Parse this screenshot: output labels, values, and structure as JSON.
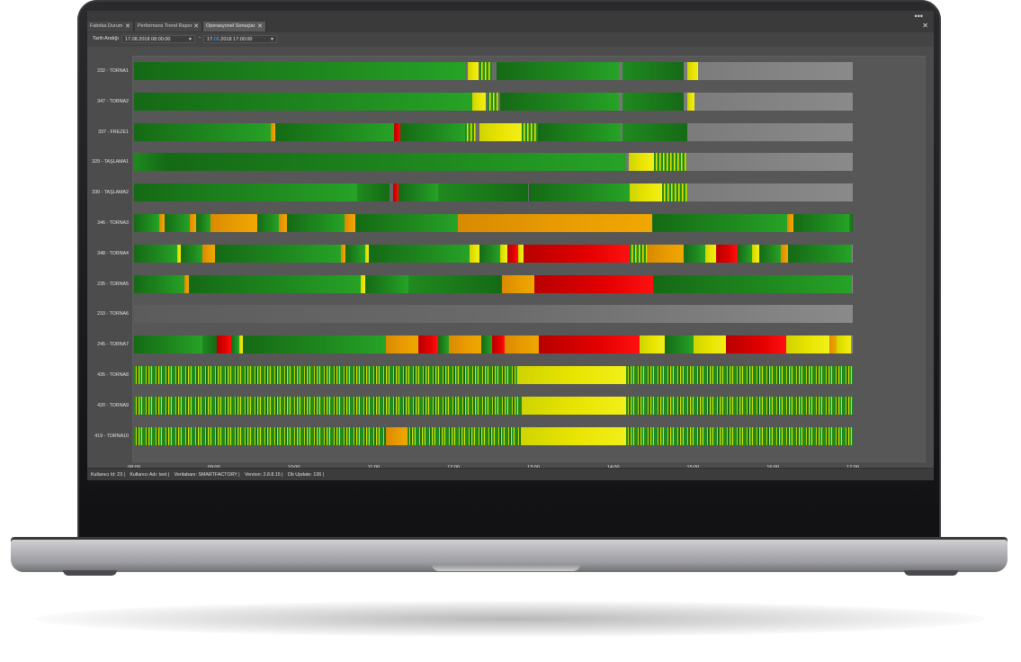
{
  "tabs": [
    {
      "label": "Fabrika Durum",
      "close": "✕"
    },
    {
      "label": "Performans Trend Rapor",
      "close": "✕"
    },
    {
      "label": "Operasyonel Sonuçlar",
      "close": "✕"
    }
  ],
  "window": {
    "menu_dots": "•••",
    "close": "✕"
  },
  "filter": {
    "label": "Tarih Aralığı",
    "start": "17.08.2018 08:00:00",
    "dash": "-",
    "end_prefix": "17.",
    "end_highlight": "08",
    "end_suffix": ".2018 17:00:00"
  },
  "machines": [
    {
      "label": "232 - TORNA1",
      "segments": [
        [
          "g",
          0,
          46
        ],
        [
          "y",
          46.4,
          1.5
        ],
        [
          "gy",
          48,
          1.8
        ],
        [
          "g",
          50.5,
          17
        ],
        [
          "g2",
          68,
          8.5
        ],
        [
          "y",
          77,
          1.5
        ]
      ]
    },
    {
      "label": "347 - TORNA2",
      "segments": [
        [
          "g",
          0,
          47
        ],
        [
          "y",
          47,
          2
        ],
        [
          "gy",
          49.2,
          1.5
        ],
        [
          "g",
          51,
          16.5
        ],
        [
          "g2",
          68,
          8.5
        ],
        [
          "y",
          77,
          1
        ]
      ]
    },
    {
      "label": "337 - FREZE1",
      "segments": [
        [
          "g",
          0,
          19
        ],
        [
          "o",
          19,
          0.7
        ],
        [
          "g",
          19.7,
          16.5
        ],
        [
          "r",
          36.2,
          0.8
        ],
        [
          "g",
          37,
          9
        ],
        [
          "gy",
          46,
          1.5
        ],
        [
          "y",
          48,
          6
        ],
        [
          "gy",
          54,
          2.2
        ],
        [
          "g",
          56.2,
          11.5
        ],
        [
          "g2",
          68,
          9
        ]
      ]
    },
    {
      "label": "329 - TAŞLAMA1",
      "segments": [
        [
          "g2",
          0,
          4.5
        ],
        [
          "g",
          4.5,
          64
        ],
        [
          "y",
          68.8,
          3.5
        ],
        [
          "gy",
          72.3,
          4.5
        ]
      ]
    },
    {
      "label": "330 - TAŞLAMA2",
      "segments": [
        [
          "g",
          0,
          31
        ],
        [
          "g2",
          31,
          4.5
        ],
        [
          "r",
          36,
          0.8
        ],
        [
          "g",
          36.8,
          5.5
        ],
        [
          "g2",
          42.3,
          12.5
        ],
        [
          "g",
          55,
          14
        ],
        [
          "y",
          69,
          4.5
        ],
        [
          "gy",
          73.5,
          3.5
        ]
      ]
    },
    {
      "label": "346 - TORNA3",
      "segments": [
        [
          "g",
          0,
          3.5
        ],
        [
          "o",
          3.5,
          0.8
        ],
        [
          "g",
          4.3,
          3.5
        ],
        [
          "o",
          7.8,
          0.8
        ],
        [
          "g",
          8.6,
          2
        ],
        [
          "o",
          10.6,
          6.5
        ],
        [
          "g",
          17.1,
          3
        ],
        [
          "o",
          20.1,
          1.2
        ],
        [
          "g",
          21.3,
          8
        ],
        [
          "o",
          29.3,
          1.5
        ],
        [
          "g",
          30.8,
          14.3
        ],
        [
          "o",
          45.1,
          27
        ],
        [
          "g",
          72.1,
          18.8
        ],
        [
          "o",
          90.9,
          0.8
        ],
        [
          "g",
          91.7,
          7.8
        ],
        [
          "g2",
          99.5,
          0.5
        ]
      ]
    },
    {
      "label": "348 - TORNA4",
      "segments": [
        [
          "g",
          0,
          6
        ],
        [
          "y",
          6,
          0.5
        ],
        [
          "g",
          6.5,
          3
        ],
        [
          "o",
          9.5,
          1.8
        ],
        [
          "g",
          11.3,
          17.5
        ],
        [
          "o",
          28.8,
          0.6
        ],
        [
          "g",
          29.4,
          2.8
        ],
        [
          "y",
          32.2,
          0.5
        ],
        [
          "g",
          32.7,
          14
        ],
        [
          "y",
          46.7,
          1.3
        ],
        [
          "g",
          48,
          3
        ],
        [
          "y",
          51,
          1
        ],
        [
          "r",
          52,
          1.5
        ],
        [
          "y",
          53.5,
          0.7
        ],
        [
          "r",
          54.2,
          14.8
        ],
        [
          "gy",
          69,
          2.5
        ],
        [
          "o",
          71.5,
          5
        ],
        [
          "g",
          76.5,
          3
        ],
        [
          "y",
          79.5,
          1.5
        ],
        [
          "r",
          81,
          3
        ],
        [
          "g",
          84,
          2
        ],
        [
          "y",
          86,
          1
        ],
        [
          "g",
          87,
          3
        ],
        [
          "o",
          90,
          1
        ],
        [
          "g",
          91,
          8.9
        ]
      ]
    },
    {
      "label": "235 - TORNA5",
      "segments": [
        [
          "g",
          0,
          7
        ],
        [
          "o",
          7,
          0.6
        ],
        [
          "g",
          7.6,
          24
        ],
        [
          "y",
          31.6,
          0.6
        ],
        [
          "g",
          32.2,
          6
        ],
        [
          "g2",
          38.2,
          13
        ],
        [
          "o",
          51.2,
          4.5
        ],
        [
          "r",
          55.7,
          16.5
        ],
        [
          "g",
          72.2,
          27.7
        ]
      ]
    },
    {
      "label": "233 - TORNA6",
      "segments": []
    },
    {
      "label": "245 - TORNA7",
      "segments": [
        [
          "g",
          0,
          9.5
        ],
        [
          "g2",
          9.5,
          2
        ],
        [
          "r",
          11.5,
          2
        ],
        [
          "g",
          13.5,
          1.2
        ],
        [
          "y",
          14.7,
          0.5
        ],
        [
          "g",
          15.2,
          19.8
        ],
        [
          "o",
          35,
          4.5
        ],
        [
          "r",
          39.5,
          2.8
        ],
        [
          "g",
          42.3,
          1.5
        ],
        [
          "o",
          43.8,
          4.5
        ],
        [
          "g",
          48.3,
          1.5
        ],
        [
          "r",
          49.8,
          1.8
        ],
        [
          "o",
          51.6,
          4.7
        ],
        [
          "r",
          56.3,
          14
        ],
        [
          "y",
          70.3,
          3.5
        ],
        [
          "g",
          73.8,
          4
        ],
        [
          "y",
          77.8,
          4.5
        ],
        [
          "r",
          82.3,
          8.5
        ],
        [
          "y",
          90.8,
          6
        ],
        [
          "o",
          96.8,
          1
        ],
        [
          "y",
          97.8,
          2
        ]
      ]
    },
    {
      "label": "435 - TORNA8",
      "segments": [
        [
          "stripe",
          0,
          53.5
        ],
        [
          "y",
          53.5,
          15
        ],
        [
          "stripe",
          68.5,
          31.5
        ]
      ]
    },
    {
      "label": "420 - TORNA9",
      "segments": [
        [
          "stripe",
          0,
          54
        ],
        [
          "y",
          54,
          14.5
        ],
        [
          "stripe",
          68.5,
          31.5
        ]
      ]
    },
    {
      "label": "419 - TORNA10",
      "segments": [
        [
          "stripe",
          0,
          35
        ],
        [
          "o",
          35,
          3
        ],
        [
          "stripe",
          38,
          15.8
        ],
        [
          "y",
          53.8,
          14.7
        ],
        [
          "stripe",
          68.5,
          31.5
        ]
      ]
    }
  ],
  "x_ticks": [
    "08:00",
    "09:00",
    "10:00",
    "11:00",
    "12:00",
    "13:00",
    "14:00",
    "15:00",
    "16:00",
    "17:00"
  ],
  "colors": {
    "green": "#1f8a1f",
    "dark_green": "#156a15",
    "yellow": "#e8e400",
    "orange": "#e89a00",
    "red": "#e30000",
    "grey_fade": "#8a8a8a"
  },
  "status": {
    "user_id": "Kullanıcı Id: 23 |",
    "user_name": "Kullanıcı Adı: test |",
    "db": "Veritabanı: SMARTFACTORY |",
    "version": "Version: 2.8.8.15 |",
    "db_update": "Db Update: 136 |"
  }
}
